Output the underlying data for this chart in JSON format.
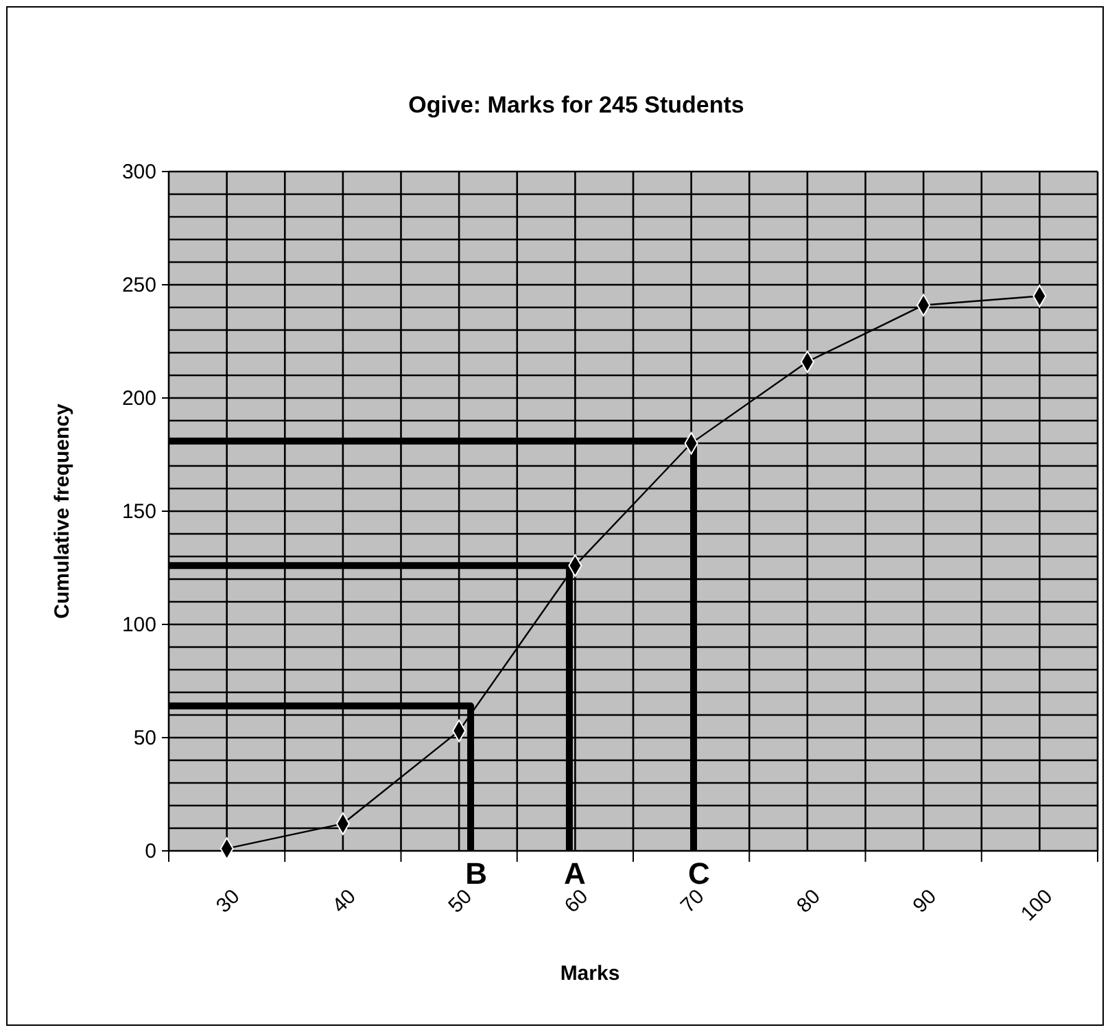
{
  "chart_data": {
    "type": "line",
    "title": "Ogive: Marks for 245 Students",
    "xlabel": "Marks",
    "ylabel": "Cumulative frequency",
    "xlim": [
      25,
      105
    ],
    "xticks": [
      {
        "value": 25,
        "label": null
      },
      30,
      {
        "value": 35,
        "label": null
      },
      40,
      {
        "value": 45,
        "label": null
      },
      50,
      {
        "value": 55,
        "label": null
      },
      60,
      {
        "value": 65,
        "label": null
      },
      70,
      {
        "value": 75,
        "label": null
      },
      80,
      {
        "value": 85,
        "label": null
      },
      90,
      {
        "value": 95,
        "label": null
      },
      100,
      {
        "value": 105,
        "label": null
      }
    ],
    "ylim": [
      0,
      300
    ],
    "yticks": [
      0,
      {
        "value": 10,
        "label": null
      },
      {
        "value": 20,
        "label": null
      },
      {
        "value": 30,
        "label": null
      },
      {
        "value": 40,
        "label": null
      },
      50,
      {
        "value": 60,
        "label": null
      },
      {
        "value": 70,
        "label": null
      },
      {
        "value": 80,
        "label": null
      },
      {
        "value": 90,
        "label": null
      },
      100,
      {
        "value": 110,
        "label": null
      },
      {
        "value": 120,
        "label": null
      },
      {
        "value": 130,
        "label": null
      },
      {
        "value": 140,
        "label": null
      },
      150,
      {
        "value": 160,
        "label": null
      },
      {
        "value": 170,
        "label": null
      },
      {
        "value": 180,
        "label": null
      },
      {
        "value": 190,
        "label": null
      },
      200,
      {
        "value": 210,
        "label": null
      },
      {
        "value": 220,
        "label": null
      },
      {
        "value": 230,
        "label": null
      },
      {
        "value": 240,
        "label": null
      },
      250,
      {
        "value": 260,
        "label": null
      },
      {
        "value": 270,
        "label": null
      },
      {
        "value": 280,
        "label": null
      },
      {
        "value": 290,
        "label": null
      },
      300
    ],
    "grid": true,
    "series": [
      {
        "color": "#000000",
        "marker": "diamond",
        "x": [
          30,
          40,
          50,
          60,
          70,
          80,
          90,
          100
        ],
        "values": [
          1,
          12,
          53,
          126,
          180,
          216,
          241,
          245
        ]
      },
      {
        "color": "#000000",
        "marker": "none",
        "x": [
          25,
          51,
          51
        ],
        "values": [
          64,
          64,
          0
        ]
      },
      {
        "color": "#000000",
        "marker": "none",
        "x": [
          25,
          59.5,
          59.5
        ],
        "values": [
          126,
          126,
          0
        ]
      },
      {
        "color": "#000000",
        "marker": "none",
        "x": [
          25,
          70.2,
          70.2
        ],
        "values": [
          181,
          181,
          0
        ]
      }
    ],
    "annotations": [
      {
        "text": "B",
        "x": 51,
        "y": 0
      },
      {
        "text": "A",
        "x": 59.5,
        "y": 0
      },
      {
        "text": "C",
        "x": 70.2,
        "y": 0
      }
    ]
  }
}
